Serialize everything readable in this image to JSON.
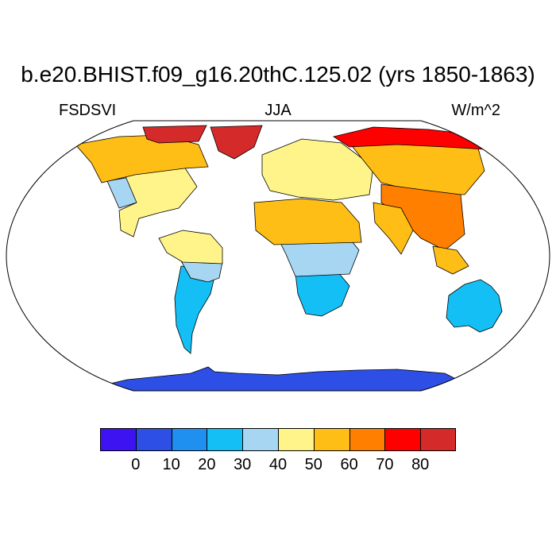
{
  "title": "b.e20.BHIST.f09_g16.20thC.125.02 (yrs 1850-1863)",
  "variable": "FSDSVI",
  "season": "JJA",
  "units": "W/m^2",
  "colors": {
    "ocean": "#ffffff",
    "coast": "#000000",
    "bins": [
      "#3d13f2",
      "#2d4fe6",
      "#1f8ff0",
      "#14bff5",
      "#a6d6f2",
      "#fff48a",
      "#ffbe16",
      "#ff7f00",
      "#ff0000",
      "#d42a2a"
    ]
  },
  "legend": {
    "ticks": [
      "0",
      "10",
      "20",
      "30",
      "40",
      "50",
      "60",
      "70",
      "80"
    ]
  },
  "regions": [
    {
      "name": "antarctica",
      "value_bin": 1
    },
    {
      "name": "australia",
      "value_bin": 3
    },
    {
      "name": "south-america-south",
      "value_bin": 3
    },
    {
      "name": "south-america-center",
      "value_bin": 4
    },
    {
      "name": "south-america-north",
      "value_bin": 5
    },
    {
      "name": "southern-africa",
      "value_bin": 3
    },
    {
      "name": "central-africa",
      "value_bin": 4
    },
    {
      "name": "sahara",
      "value_bin": 6
    },
    {
      "name": "europe",
      "value_bin": 5
    },
    {
      "name": "siberia",
      "value_bin": 6
    },
    {
      "name": "arctic-russia",
      "value_bin": 8
    },
    {
      "name": "tibet-china",
      "value_bin": 7
    },
    {
      "name": "india",
      "value_bin": 6
    },
    {
      "name": "north-america",
      "value_bin": 5
    },
    {
      "name": "canada",
      "value_bin": 6
    },
    {
      "name": "greenland",
      "value_bin": 9
    },
    {
      "name": "us-southwest",
      "value_bin": 4
    }
  ]
}
